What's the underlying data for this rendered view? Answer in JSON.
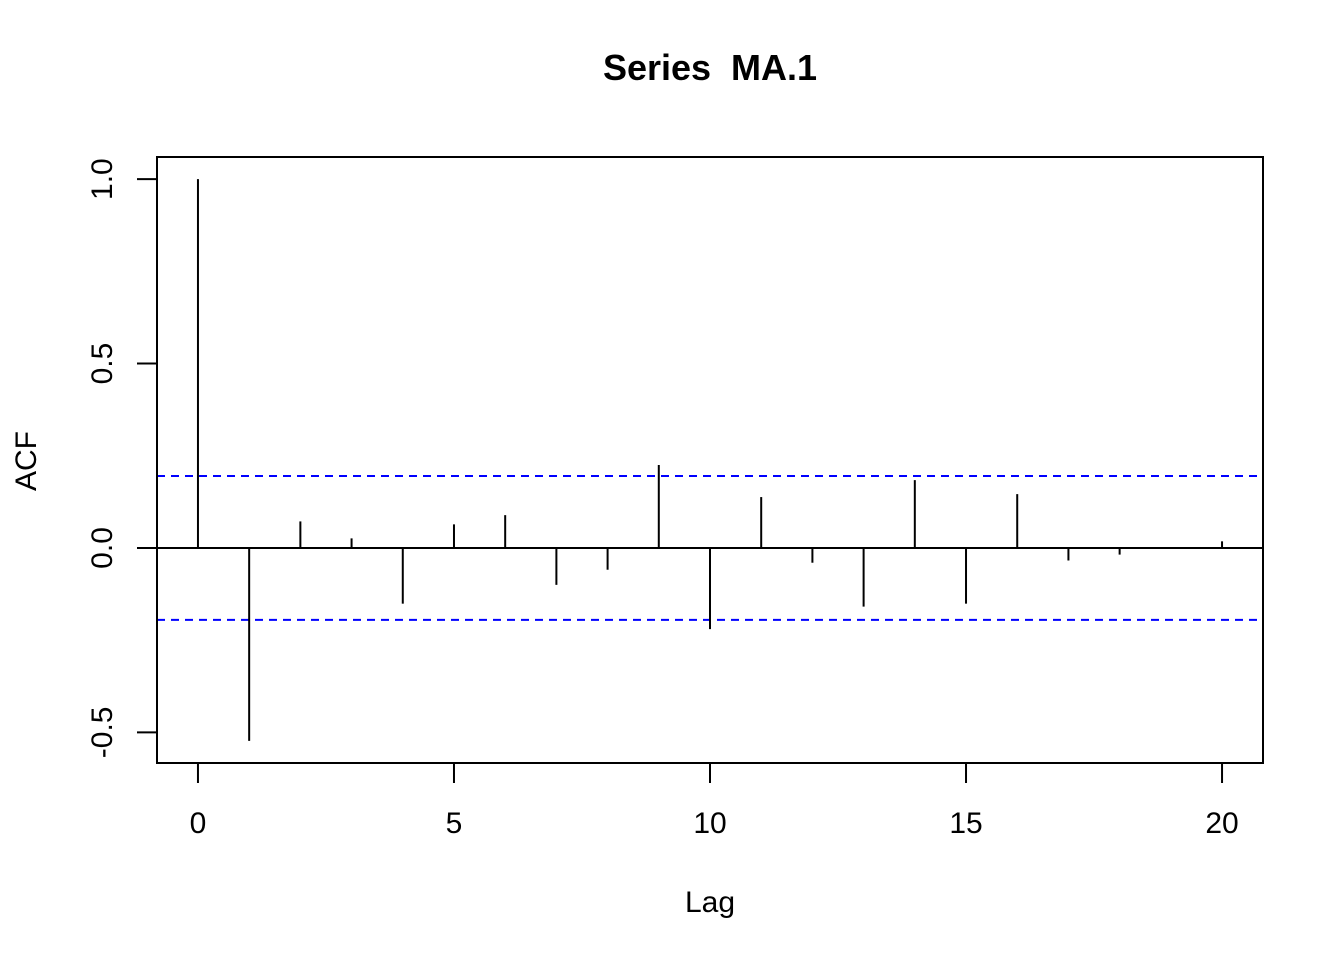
{
  "chart_data": {
    "type": "bar",
    "subtype": "acf-lollipop",
    "title": "Series  MA.1",
    "xlabel": "Lag",
    "ylabel": "ACF",
    "xlim": [
      -0.8,
      20.8
    ],
    "ylim": [
      -0.583,
      1.06
    ],
    "x_ticks": [
      0,
      5,
      10,
      15,
      20
    ],
    "x_tick_labels": [
      "0",
      "5",
      "10",
      "15",
      "20"
    ],
    "y_ticks": [
      -0.5,
      0.0,
      0.5,
      1.0
    ],
    "y_tick_labels": [
      "-0.5",
      "0.0",
      "0.5",
      "1.0"
    ],
    "lags": [
      0,
      1,
      2,
      3,
      4,
      5,
      6,
      7,
      8,
      9,
      10,
      11,
      12,
      13,
      14,
      15,
      16,
      17,
      18,
      19,
      20
    ],
    "values": [
      1.0,
      -0.523,
      0.072,
      0.026,
      -0.151,
      0.064,
      0.089,
      -0.1,
      -0.059,
      0.225,
      -0.22,
      0.138,
      -0.04,
      -0.159,
      0.184,
      -0.151,
      0.146,
      -0.034,
      -0.018,
      0.002,
      0.018
    ],
    "confidence_bound": 0.195,
    "grid": false,
    "colors": {
      "bars": "#000000",
      "confidence": "#0000ff",
      "zero_line": "#000000"
    }
  }
}
